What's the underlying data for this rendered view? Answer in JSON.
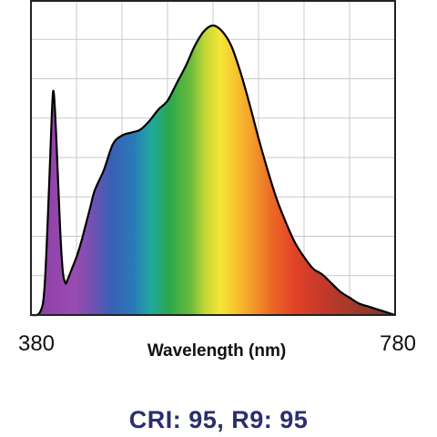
{
  "chart_data": {
    "type": "area",
    "title": "",
    "xlabel": "Wavelength (nm)",
    "ylabel": "",
    "xlim": [
      380,
      780
    ],
    "ylim": [
      0,
      1
    ],
    "x_tick_labels": [
      "380",
      "780"
    ],
    "grid": true,
    "series": [
      {
        "x": [
          380,
          390,
          395,
          400,
          403,
          405,
          408,
          412,
          415,
          418,
          420,
          425,
          430,
          435,
          440,
          445,
          450,
          460,
          470,
          480,
          490,
          500,
          510,
          520,
          530,
          540,
          550,
          560,
          570,
          580,
          590,
          600,
          610,
          620,
          630,
          640,
          650,
          660,
          670,
          680,
          690,
          700,
          710,
          720,
          730,
          740,
          750,
          760,
          770,
          780
        ],
        "y": [
          0.0,
          0.01,
          0.1,
          0.45,
          0.7,
          0.77,
          0.6,
          0.3,
          0.15,
          0.11,
          0.12,
          0.16,
          0.2,
          0.25,
          0.31,
          0.37,
          0.43,
          0.5,
          0.59,
          0.62,
          0.63,
          0.64,
          0.67,
          0.71,
          0.74,
          0.8,
          0.86,
          0.93,
          0.98,
          1.0,
          0.98,
          0.93,
          0.84,
          0.73,
          0.61,
          0.5,
          0.4,
          0.32,
          0.25,
          0.2,
          0.16,
          0.14,
          0.11,
          0.08,
          0.06,
          0.04,
          0.03,
          0.02,
          0.01,
          0.0
        ]
      }
    ]
  },
  "footer": {
    "caption": "CRI: 95, R9: 95",
    "caption_color": "#2b2e6e"
  }
}
